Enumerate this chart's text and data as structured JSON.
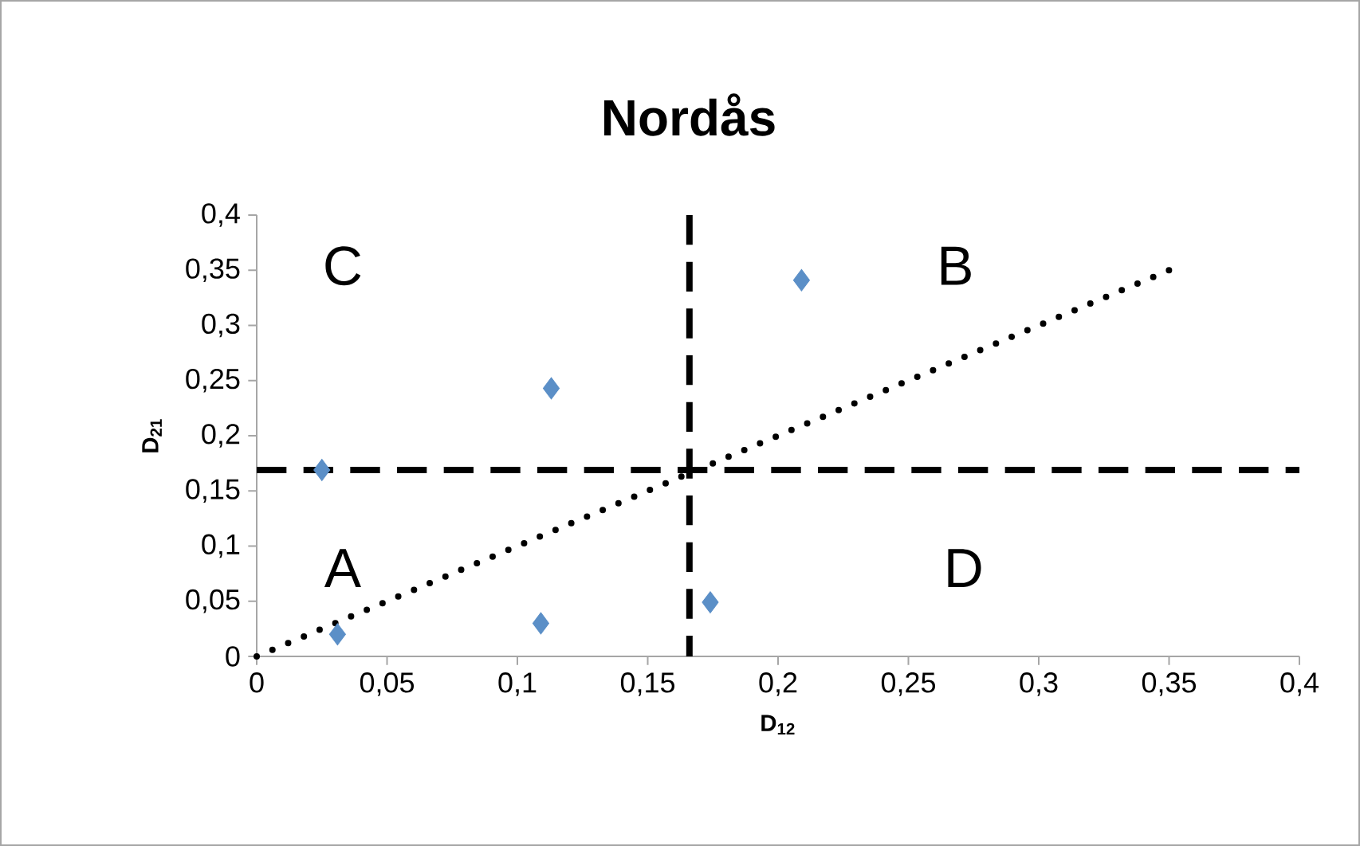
{
  "chart_data": {
    "type": "scatter",
    "title": "Nordås",
    "xlabel": "D$_{12}$",
    "ylabel": "D$_{21}$",
    "xlim": [
      0,
      0.4
    ],
    "ylim": [
      0,
      0.4
    ],
    "xticks": [
      0,
      {
        "value": 0.05,
        "label": "0,05"
      },
      {
        "value": 0.1,
        "label": "0,1"
      },
      {
        "value": 0.15,
        "label": "0,15"
      },
      {
        "value": 0.2,
        "label": "0,2"
      },
      {
        "value": 0.25,
        "label": "0,25"
      },
      {
        "value": 0.3,
        "label": "0,3"
      },
      {
        "value": 0.35,
        "label": "0,35"
      },
      {
        "value": 0.4,
        "label": "0,4"
      }
    ],
    "yticks": [
      0,
      {
        "value": 0.05,
        "label": "0,05"
      },
      {
        "value": 0.1,
        "label": "0,1"
      },
      {
        "value": 0.15,
        "label": "0,15"
      },
      {
        "value": 0.2,
        "label": "0,2"
      },
      {
        "value": 0.25,
        "label": "0,25"
      },
      {
        "value": 0.3,
        "label": "0,3"
      },
      {
        "value": 0.35,
        "label": "0,35"
      },
      {
        "value": 0.4,
        "label": "0,4"
      }
    ],
    "series": [
      {
        "color": "#5b8fc7",
        "marker": "diamond",
        "x": [
          0.031,
          0.025,
          0.113,
          0.109,
          0.174,
          0.209
        ],
        "values": [
          0.02,
          0.169,
          0.243,
          0.03,
          0.049,
          0.341
        ]
      },
      {
        "type": "line",
        "color": "#000000",
        "marker": "none",
        "line_style": "dotted",
        "x": [
          0,
          0.35
        ],
        "values": [
          0,
          0.35
        ]
      }
    ],
    "ref_lines": [
      {
        "axis": "x",
        "value": 0.166,
        "color": "#000000",
        "line_style": "dashed"
      },
      {
        "axis": "y",
        "value": 0.169,
        "color": "#000000",
        "line_style": "dashed"
      }
    ],
    "annotations": [
      "C",
      "B",
      "A",
      "D"
    ],
    "grid": false
  }
}
